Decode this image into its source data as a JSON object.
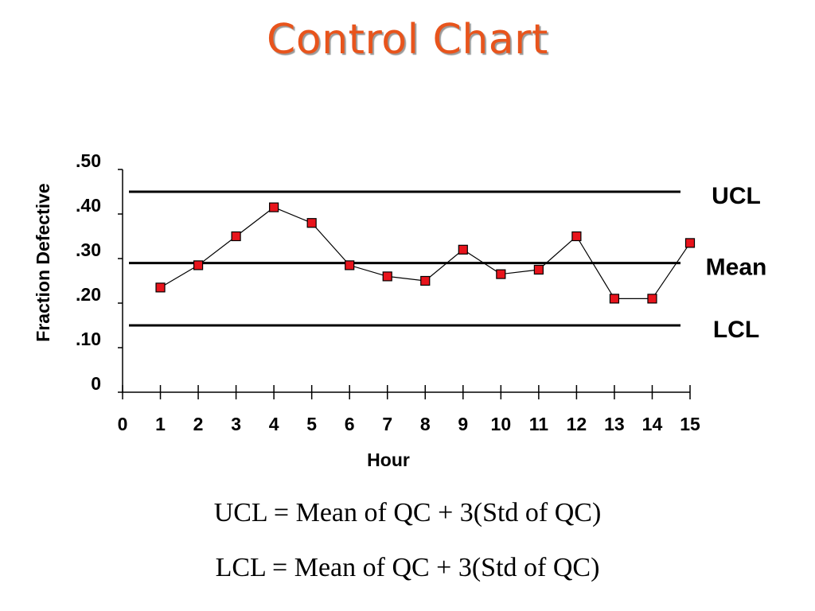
{
  "title": "Control Chart",
  "formulas": {
    "ucl": "UCL = Mean of QC + 3(Std of QC)",
    "lcl": "LCL = Mean of QC + 3(Std of QC)"
  },
  "colors": {
    "title": "#e8541c",
    "marker_fill": "#e8141c",
    "line": "#000000"
  },
  "chart_data": {
    "type": "line",
    "xlabel": "Hour",
    "ylabel": "Fraction Defective",
    "x_ticks": [
      "0",
      "1",
      "2",
      "3",
      "4",
      "5",
      "6",
      "7",
      "8",
      "9",
      "10",
      "11",
      "12",
      "13",
      "14",
      "15"
    ],
    "y_ticks": [
      {
        "value": 0,
        "label": "0"
      },
      {
        "value": 0.1,
        "label": ".10"
      },
      {
        "value": 0.2,
        "label": ".20"
      },
      {
        "value": 0.3,
        "label": ".30"
      },
      {
        "value": 0.4,
        "label": ".40"
      },
      {
        "value": 0.5,
        "label": ".50"
      }
    ],
    "xlim": [
      0,
      15
    ],
    "ylim": [
      0,
      0.5
    ],
    "grid": false,
    "series": [
      {
        "x": [
          1,
          2,
          3,
          4,
          5,
          6,
          7,
          8,
          9,
          10,
          11,
          12,
          13,
          14,
          15
        ],
        "values": [
          0.235,
          0.285,
          0.35,
          0.415,
          0.38,
          0.285,
          0.26,
          0.25,
          0.32,
          0.265,
          0.275,
          0.35,
          0.21,
          0.21,
          0.335
        ]
      }
    ],
    "reference_lines": [
      {
        "label": "UCL",
        "value": 0.45
      },
      {
        "label": "Mean",
        "value": 0.29
      },
      {
        "label": "LCL",
        "value": 0.15
      }
    ]
  }
}
